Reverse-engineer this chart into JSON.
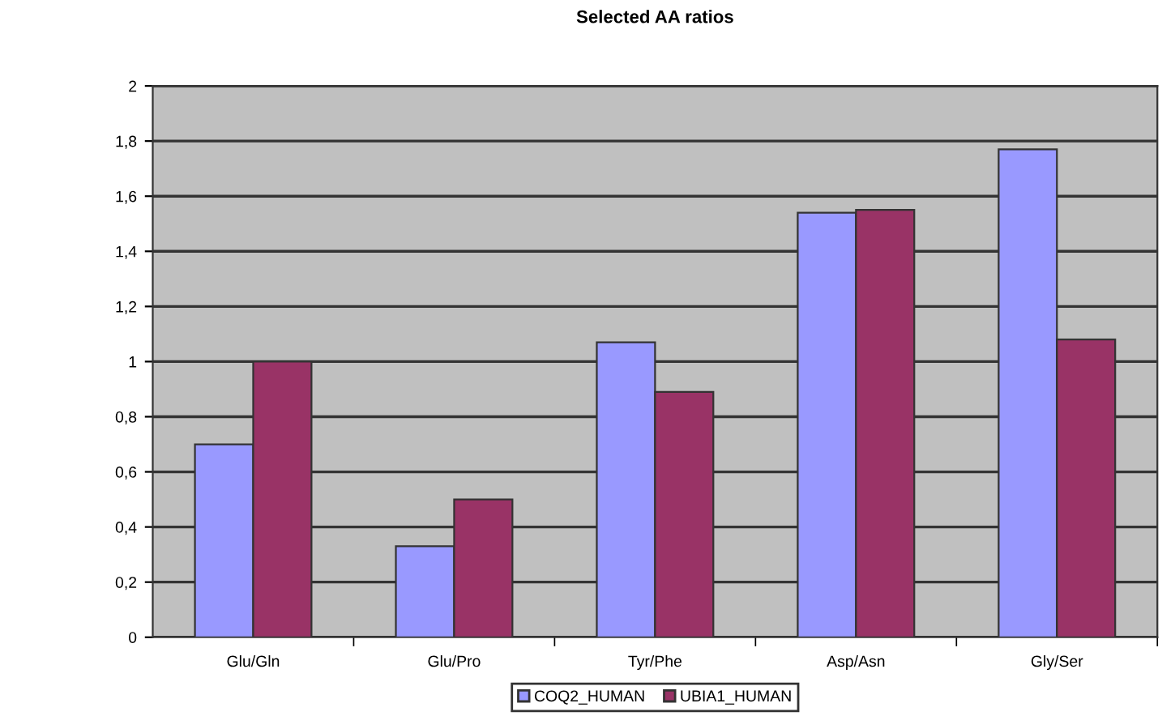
{
  "chart_data": {
    "type": "bar",
    "title": "Selected AA ratios",
    "categories": [
      "Glu/Gln",
      "Glu/Pro",
      "Tyr/Phe",
      "Asp/Asn",
      "Gly/Ser"
    ],
    "series": [
      {
        "name": "COQ2_HUMAN",
        "color": "#9999ff",
        "values": [
          0.7,
          0.33,
          1.07,
          1.54,
          1.77
        ]
      },
      {
        "name": "UBIA1_HUMAN",
        "color": "#993366",
        "values": [
          1.0,
          0.5,
          0.89,
          1.55,
          1.08
        ]
      }
    ],
    "ylim": [
      0,
      2
    ],
    "yticks": [
      0,
      {
        "value": 0.2,
        "label": "0,2"
      },
      {
        "value": 0.4,
        "label": "0,4"
      },
      {
        "value": 0.6,
        "label": "0,6"
      },
      {
        "value": 0.8,
        "label": "0,8"
      },
      1,
      {
        "value": 1.2,
        "label": "1,2"
      },
      {
        "value": 1.4,
        "label": "1,4"
      },
      {
        "value": 1.6,
        "label": "1,6"
      },
      {
        "value": 1.8,
        "label": "1,8"
      },
      2
    ],
    "grid": "y",
    "legend": "bottom"
  }
}
